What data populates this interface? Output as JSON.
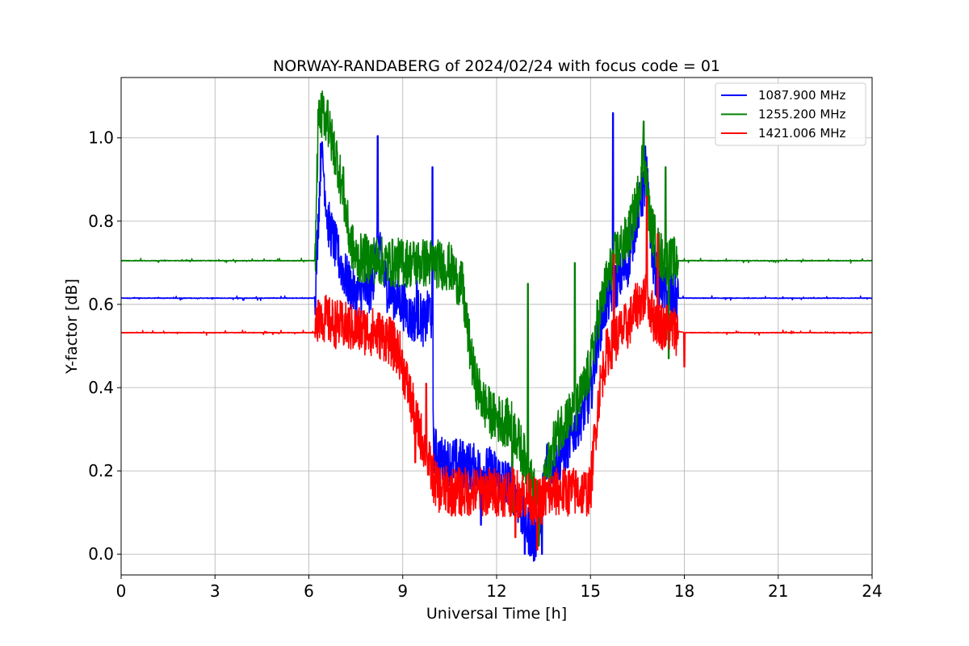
{
  "chart_data": {
    "type": "line",
    "title": "NORWAY-RANDABERG of 2024/02/24 with focus code = 01",
    "xlabel": "Universal Time [h]",
    "ylabel": "Y-factor [dB]",
    "xlim": [
      0,
      24
    ],
    "ylim": [
      -0.05,
      1.145
    ],
    "xticks": [
      0,
      3,
      6,
      9,
      12,
      15,
      18,
      21,
      24
    ],
    "xtick_labels": [
      "0",
      "3",
      "6",
      "9",
      "12",
      "15",
      "18",
      "21",
      "24"
    ],
    "yticks": [
      0.0,
      0.2,
      0.4,
      0.6,
      0.8,
      1.0
    ],
    "ytick_labels": [
      "0.0",
      "0.2",
      "0.4",
      "0.6",
      "0.8",
      "1.0"
    ],
    "grid": true,
    "legend": "top-right",
    "series": [
      {
        "name": "1087.900 MHz",
        "color": "#0000ff",
        "baseline": 0.615,
        "points": [
          [
            0,
            0.615
          ],
          [
            6.2,
            0.615
          ],
          [
            6.3,
            0.8
          ],
          [
            6.4,
            0.99
          ],
          [
            6.6,
            0.8
          ],
          [
            6.8,
            0.75
          ],
          [
            7.0,
            0.7
          ],
          [
            7.2,
            0.66
          ],
          [
            7.5,
            0.62
          ],
          [
            8.0,
            0.64
          ],
          [
            8.2,
            0.74
          ],
          [
            8.5,
            0.64
          ],
          [
            9.0,
            0.6
          ],
          [
            9.3,
            0.56
          ],
          [
            9.5,
            0.58
          ],
          [
            9.7,
            0.55
          ],
          [
            9.9,
            0.6
          ],
          [
            10.0,
            0.25
          ],
          [
            10.3,
            0.22
          ],
          [
            10.8,
            0.22
          ],
          [
            11.2,
            0.21
          ],
          [
            11.5,
            0.2
          ],
          [
            11.8,
            0.2
          ],
          [
            12.2,
            0.18
          ],
          [
            12.5,
            0.16
          ],
          [
            12.8,
            0.1
          ],
          [
            13.0,
            0.06
          ],
          [
            13.2,
            0.03
          ],
          [
            13.4,
            0.1
          ],
          [
            13.6,
            0.22
          ],
          [
            13.9,
            0.22
          ],
          [
            14.2,
            0.25
          ],
          [
            14.5,
            0.3
          ],
          [
            14.8,
            0.35
          ],
          [
            15.0,
            0.38
          ],
          [
            15.2,
            0.5
          ],
          [
            15.4,
            0.58
          ],
          [
            15.6,
            0.62
          ],
          [
            15.9,
            0.66
          ],
          [
            16.2,
            0.7
          ],
          [
            16.5,
            0.82
          ],
          [
            16.8,
            0.9
          ],
          [
            17.0,
            0.7
          ],
          [
            17.2,
            0.65
          ],
          [
            17.5,
            0.62
          ],
          [
            17.8,
            0.615
          ],
          [
            24,
            0.615
          ]
        ],
        "spikes": [
          [
            6.42,
            0.99
          ],
          [
            8.2,
            1.005
          ],
          [
            9.45,
            0.66
          ],
          [
            9.95,
            0.93
          ],
          [
            11.5,
            0.07
          ],
          [
            12.9,
            0.0
          ],
          [
            13.45,
            0.0
          ],
          [
            15.72,
            1.06
          ],
          [
            16.75,
            0.98
          ]
        ]
      },
      {
        "name": "1255.200 MHz",
        "color": "#008000",
        "baseline": 0.705,
        "points": [
          [
            0,
            0.705
          ],
          [
            6.2,
            0.705
          ],
          [
            6.3,
            1.05
          ],
          [
            6.5,
            1.06
          ],
          [
            6.7,
            1.0
          ],
          [
            6.9,
            0.95
          ],
          [
            7.1,
            0.86
          ],
          [
            7.3,
            0.76
          ],
          [
            7.5,
            0.71
          ],
          [
            8.0,
            0.71
          ],
          [
            8.5,
            0.7
          ],
          [
            9.0,
            0.7
          ],
          [
            9.5,
            0.7
          ],
          [
            10.0,
            0.7
          ],
          [
            10.5,
            0.69
          ],
          [
            10.9,
            0.64
          ],
          [
            11.1,
            0.52
          ],
          [
            11.3,
            0.42
          ],
          [
            11.6,
            0.36
          ],
          [
            11.9,
            0.33
          ],
          [
            12.2,
            0.32
          ],
          [
            12.5,
            0.31
          ],
          [
            12.8,
            0.25
          ],
          [
            13.0,
            0.2
          ],
          [
            13.2,
            0.15
          ],
          [
            13.4,
            0.1
          ],
          [
            13.6,
            0.2
          ],
          [
            13.9,
            0.28
          ],
          [
            14.2,
            0.33
          ],
          [
            14.5,
            0.34
          ],
          [
            14.8,
            0.4
          ],
          [
            15.0,
            0.45
          ],
          [
            15.2,
            0.55
          ],
          [
            15.5,
            0.65
          ],
          [
            15.8,
            0.72
          ],
          [
            16.2,
            0.76
          ],
          [
            16.5,
            0.85
          ],
          [
            16.7,
            0.97
          ],
          [
            16.9,
            0.8
          ],
          [
            17.2,
            0.72
          ],
          [
            17.5,
            0.7
          ],
          [
            17.8,
            0.705
          ],
          [
            24,
            0.705
          ]
        ],
        "spikes": [
          [
            6.33,
            1.09
          ],
          [
            6.6,
            1.09
          ],
          [
            7.1,
            0.93
          ],
          [
            9.0,
            0.75
          ],
          [
            10.9,
            0.7
          ],
          [
            12.5,
            0.1
          ],
          [
            13.0,
            0.65
          ],
          [
            13.35,
            0.02
          ],
          [
            14.5,
            0.7
          ],
          [
            16.7,
            1.04
          ],
          [
            17.4,
            0.93
          ],
          [
            17.5,
            0.47
          ]
        ]
      },
      {
        "name": "1421.006 MHz",
        "color": "#ff0000",
        "baseline": 0.532,
        "points": [
          [
            0,
            0.532
          ],
          [
            6.2,
            0.532
          ],
          [
            6.3,
            0.58
          ],
          [
            6.6,
            0.56
          ],
          [
            7.0,
            0.55
          ],
          [
            7.5,
            0.54
          ],
          [
            8.0,
            0.535
          ],
          [
            8.5,
            0.52
          ],
          [
            8.9,
            0.48
          ],
          [
            9.1,
            0.42
          ],
          [
            9.3,
            0.36
          ],
          [
            9.5,
            0.3
          ],
          [
            9.7,
            0.26
          ],
          [
            9.9,
            0.2
          ],
          [
            10.1,
            0.16
          ],
          [
            10.5,
            0.15
          ],
          [
            11.0,
            0.15
          ],
          [
            11.5,
            0.15
          ],
          [
            12.0,
            0.15
          ],
          [
            12.5,
            0.15
          ],
          [
            13.0,
            0.14
          ],
          [
            13.3,
            0.12
          ],
          [
            13.6,
            0.14
          ],
          [
            14.0,
            0.15
          ],
          [
            14.5,
            0.15
          ],
          [
            15.0,
            0.15
          ],
          [
            15.1,
            0.25
          ],
          [
            15.3,
            0.4
          ],
          [
            15.5,
            0.48
          ],
          [
            15.8,
            0.52
          ],
          [
            16.2,
            0.55
          ],
          [
            16.5,
            0.6
          ],
          [
            16.8,
            0.62
          ],
          [
            17.0,
            0.57
          ],
          [
            17.3,
            0.55
          ],
          [
            17.6,
            0.54
          ],
          [
            18.0,
            0.532
          ],
          [
            24,
            0.532
          ]
        ],
        "spikes": [
          [
            6.3,
            0.61
          ],
          [
            9.4,
            0.22
          ],
          [
            9.75,
            0.41
          ],
          [
            12.6,
            0.04
          ],
          [
            13.3,
            0.01
          ],
          [
            15.75,
            0.72
          ],
          [
            16.8,
            0.86
          ],
          [
            17.15,
            0.77
          ],
          [
            18.0,
            0.45
          ]
        ]
      }
    ]
  }
}
